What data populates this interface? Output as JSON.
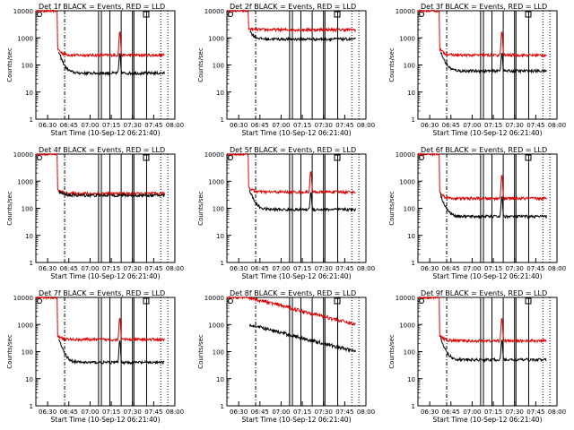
{
  "chart_data": {
    "type": "line",
    "yscale": "log",
    "ylim": [
      1,
      10000
    ],
    "xlim": [
      "06:21:40",
      "08:00"
    ],
    "ylabel": "Counts/sec",
    "xlabel": "Start Time (10-Sep-12 06:21:40)",
    "xticks": [
      "06:30",
      "06:45",
      "07:00",
      "07:15",
      "07:30",
      "07:45",
      "08:00"
    ],
    "yticks": [
      "1",
      "10",
      "100",
      "1000",
      "10000"
    ],
    "colors": {
      "events": "#000000",
      "lld": "#dd0000"
    },
    "panels": [
      {
        "title": "Det 1f BLACK = Events, RED = LLD",
        "events": 50,
        "lld": 230,
        "peak": 1500,
        "bg_start": 400
      },
      {
        "title": "Det 2f BLACK = Events, RED = LLD",
        "events": 900,
        "lld": 2000,
        "peak": 0,
        "bg_start": 2200
      },
      {
        "title": "Det 3f BLACK = Events, RED = LLD",
        "events": 60,
        "lld": 230,
        "peak": 1500,
        "bg_start": 400
      },
      {
        "title": "Det 4f BLACK = Events, RED = LLD",
        "events": 300,
        "lld": 350,
        "peak": 0,
        "bg_start": 500
      },
      {
        "title": "Det 5f BLACK = Events, RED = LLD",
        "events": 90,
        "lld": 400,
        "peak": 2000,
        "bg_start": 600
      },
      {
        "title": "Det 6f BLACK = Events, RED = LLD",
        "events": 50,
        "lld": 230,
        "peak": 1500,
        "bg_start": 400
      },
      {
        "title": "Det 7f BLACK = Events, RED = LLD",
        "events": 40,
        "lld": 280,
        "peak": 1500,
        "bg_start": 400
      },
      {
        "title": "Det 8f BLACK = Events, RED = LLD",
        "events": 100,
        "lld": 1000,
        "peak": 0,
        "bg_start": 10000
      },
      {
        "title": "Det 9f BLACK = Events, RED = LLD",
        "events": 50,
        "lld": 250,
        "peak": 1500,
        "bg_start": 400
      }
    ],
    "markers": [
      "06:42",
      "07:06",
      "07:08",
      "07:14",
      "07:22",
      "07:30",
      "07:31",
      "07:40",
      "07:50",
      "07:55"
    ]
  }
}
